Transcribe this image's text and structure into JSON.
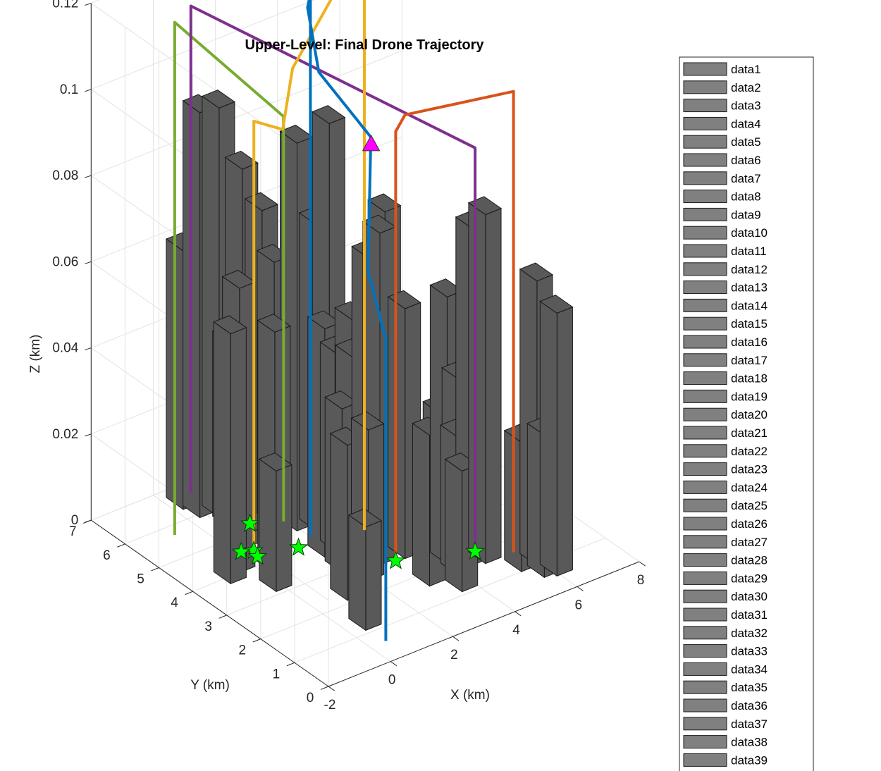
{
  "chart_data": {
    "type": "3d-bar-line",
    "title": "Upper-Level: Final Drone Trajectory",
    "xlabel": "X (km)",
    "ylabel": "Y (km)",
    "zlabel": "Z (km)",
    "xlim": [
      -2,
      8
    ],
    "ylim": [
      0,
      7
    ],
    "zlim": [
      0,
      0.12
    ],
    "x_ticks": [
      -2,
      0,
      2,
      4,
      6,
      8
    ],
    "y_ticks": [
      0,
      1,
      2,
      3,
      4,
      5,
      6,
      7
    ],
    "z_ticks": [
      0,
      0.02,
      0.04,
      0.06,
      0.08,
      0.1,
      0.12
    ],
    "grid": true,
    "legend_position": "right",
    "legend_entries": [
      "data1",
      "data2",
      "data3",
      "data4",
      "data5",
      "data6",
      "data7",
      "data8",
      "data9",
      "data10",
      "data11",
      "data12",
      "data13",
      "data14",
      "data15",
      "data16",
      "data17",
      "data18",
      "data19",
      "data20",
      "data21",
      "data22",
      "data23",
      "data24",
      "data25",
      "data26",
      "data27",
      "data28",
      "data29",
      "data30",
      "data31",
      "data32",
      "data33",
      "data34",
      "data35",
      "data36",
      "data37",
      "data38",
      "data39"
    ],
    "colors": {
      "building": "#595959",
      "building_edge": "#1a1a1a",
      "legend_swatch": "#808080",
      "start_marker": "#00ff00",
      "goal_marker": "#ff00ff",
      "grid": "#e3e3e3",
      "axis": "#262626"
    },
    "buildings": [
      {
        "x": 5.9,
        "y": 0.5,
        "w": 0.5,
        "d": 0.5,
        "h": 0.061
      },
      {
        "x": 5.6,
        "y": 0.6,
        "w": 0.5,
        "d": 0.5,
        "h": 0.033
      },
      {
        "x": 5.8,
        "y": 1.0,
        "w": 0.5,
        "d": 0.5,
        "h": 0.066
      },
      {
        "x": 5.3,
        "y": 1.0,
        "w": 0.5,
        "d": 0.5,
        "h": 0.03
      },
      {
        "x": 4.8,
        "y": 1.6,
        "w": 0.5,
        "d": 0.5,
        "h": 0.081
      },
      {
        "x": 4.5,
        "y": 1.7,
        "w": 0.5,
        "d": 0.5,
        "h": 0.078
      },
      {
        "x": 4.6,
        "y": 2.2,
        "w": 0.5,
        "d": 0.5,
        "h": 0.04
      },
      {
        "x": 4.1,
        "y": 2.3,
        "w": 0.5,
        "d": 0.5,
        "h": 0.033
      },
      {
        "x": 3.9,
        "y": 1.6,
        "w": 0.5,
        "d": 0.5,
        "h": 0.032
      },
      {
        "x": 3.5,
        "y": 1.1,
        "w": 0.5,
        "d": 0.5,
        "h": 0.028
      },
      {
        "x": 3.0,
        "y": 1.6,
        "w": 0.5,
        "d": 0.5,
        "h": 0.035
      },
      {
        "x": 3.3,
        "y": 2.6,
        "w": 0.5,
        "d": 0.5,
        "h": 0.058
      },
      {
        "x": 3.2,
        "y": 3.1,
        "w": 0.5,
        "d": 0.5,
        "h": 0.078
      },
      {
        "x": 2.9,
        "y": 3.3,
        "w": 0.5,
        "d": 0.5,
        "h": 0.067
      },
      {
        "x": 2.9,
        "y": 3.8,
        "w": 0.5,
        "d": 0.5,
        "h": 0.05
      },
      {
        "x": 2.5,
        "y": 4.1,
        "w": 0.5,
        "d": 0.5,
        "h": 0.095
      },
      {
        "x": 2.3,
        "y": 4.3,
        "w": 0.5,
        "d": 0.5,
        "h": 0.071
      },
      {
        "x": 2.7,
        "y": 3.6,
        "w": 0.5,
        "d": 0.5,
        "h": 0.043
      },
      {
        "x": 2.1,
        "y": 3.5,
        "w": 0.5,
        "d": 0.5,
        "h": 0.046
      },
      {
        "x": 1.9,
        "y": 4.5,
        "w": 0.5,
        "d": 0.5,
        "h": 0.09
      },
      {
        "x": 1.6,
        "y": 4.9,
        "w": 0.5,
        "d": 0.5,
        "h": 0.061
      },
      {
        "x": 1.1,
        "y": 4.8,
        "w": 0.5,
        "d": 0.5,
        "h": 0.075
      },
      {
        "x": 0.9,
        "y": 5.2,
        "w": 0.5,
        "d": 0.5,
        "h": 0.083
      },
      {
        "x": 0.7,
        "y": 5.7,
        "w": 0.5,
        "d": 0.5,
        "h": 0.095
      },
      {
        "x": 0.3,
        "y": 5.9,
        "w": 0.5,
        "d": 0.5,
        "h": 0.094
      },
      {
        "x": 0.2,
        "y": 6.3,
        "w": 0.5,
        "d": 0.5,
        "h": 0.06
      },
      {
        "x": 0.5,
        "y": 4.6,
        "w": 0.5,
        "d": 0.5,
        "h": 0.04
      },
      {
        "x": 0.6,
        "y": 5.3,
        "w": 0.5,
        "d": 0.5,
        "h": 0.043
      },
      {
        "x": 1.7,
        "y": 3.5,
        "w": 0.5,
        "d": 0.5,
        "h": 0.053
      },
      {
        "x": 1.6,
        "y": 2.9,
        "w": 0.5,
        "d": 0.5,
        "h": 0.038
      },
      {
        "x": 1.9,
        "y": 2.4,
        "w": 0.5,
        "d": 0.5,
        "h": 0.035
      },
      {
        "x": 2.6,
        "y": 2.7,
        "w": 0.5,
        "d": 0.5,
        "h": 0.077
      },
      {
        "x": 0.2,
        "y": 3.6,
        "w": 0.5,
        "d": 0.5,
        "h": 0.056
      },
      {
        "x": -0.5,
        "y": 4.0,
        "w": 0.5,
        "d": 0.5,
        "h": 0.066
      },
      {
        "x": -1.0,
        "y": 3.8,
        "w": 0.5,
        "d": 0.5,
        "h": 0.058
      },
      {
        "x": -0.3,
        "y": 3.1,
        "w": 0.5,
        "d": 0.5,
        "h": 0.028
      },
      {
        "x": 0.9,
        "y": 2.1,
        "w": 0.5,
        "d": 0.5,
        "h": 0.036
      },
      {
        "x": 0.4,
        "y": 1.1,
        "w": 0.5,
        "d": 0.5,
        "h": 0.024
      },
      {
        "x": 4.0,
        "y": 2.0,
        "w": 0.5,
        "d": 0.5,
        "h": 0.062
      }
    ],
    "series": [
      {
        "color": "#77ac30",
        "points": [
          [
            -1.6,
            4.9,
            0.007
          ],
          [
            -1.6,
            4.9,
            0.126
          ],
          [
            1.9,
            4.9,
            0.094
          ],
          [
            1.9,
            4.9,
            0.0
          ]
        ]
      },
      {
        "color": "#7e2f8e",
        "points": [
          [
            -1.3,
            4.7,
            0.017
          ],
          [
            -1.3,
            4.7,
            0.13
          ],
          [
            4.9,
            2.0,
            0.094
          ],
          [
            4.9,
            2.0,
            0.0
          ]
        ]
      },
      {
        "color": "#edb120",
        "points": [
          [
            0.4,
            4.4,
            0.0
          ],
          [
            0.4,
            4.4,
            0.1
          ],
          [
            1.0,
            4.1,
            0.098
          ],
          [
            1.1,
            3.9,
            0.113
          ],
          [
            3.3,
            3.8,
            0.137
          ],
          [
            3.3,
            3.8,
            0.0
          ]
        ]
      },
      {
        "color": "#d95319",
        "points": [
          [
            3.0,
            2.6,
            0.0
          ],
          [
            3.0,
            2.6,
            0.1
          ],
          [
            3.3,
            2.6,
            0.103
          ],
          [
            5.7,
            1.6,
            0.107
          ],
          [
            5.7,
            1.6,
            0.0
          ]
        ]
      },
      {
        "color": "#0072bd",
        "points": [
          [
            0.5,
            0.6,
            0.0
          ],
          [
            0.5,
            0.6,
            0.07
          ],
          [
            2.0,
            2.5,
            0.071
          ],
          [
            2.2,
            2.6,
            0.101
          ],
          [
            1.4,
            3.4,
            0.114
          ],
          [
            1.8,
            4.1,
            0.124
          ],
          [
            2.0,
            4.2,
            0.126
          ],
          [
            2.0,
            4.2,
            0.0
          ]
        ]
      }
    ],
    "start_markers": [
      [
        0.4,
        4.4,
        0.0
      ],
      [
        0.6,
        4.7,
        0.004
      ],
      [
        0.1,
        4.5,
        0.0
      ],
      [
        0.3,
        4.2,
        0.0
      ],
      [
        1.4,
        4.0,
        0.0
      ],
      [
        3.0,
        2.6,
        0.0
      ],
      [
        4.9,
        2.0,
        0.0
      ]
    ],
    "goal_marker": [
      2.1,
      2.5,
      0.1
    ]
  }
}
